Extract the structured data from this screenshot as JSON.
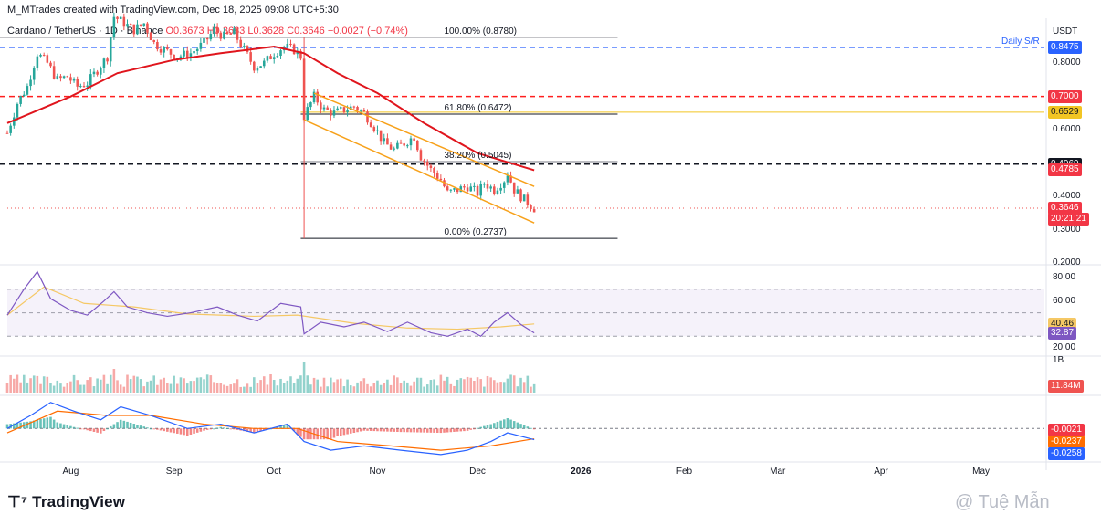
{
  "header": {
    "title": "M_MTrades created with TradingView.com, Dec 18, 2025 09:08 UTC+5:30"
  },
  "legend": {
    "symbol": "Cardano / TetherUS · 1D · Binance",
    "ohlc": "O0.3673 H0.3683 L0.3628 C0.3646",
    "change": "−0.0027 (−0.74%)"
  },
  "axis_title": "USDT",
  "colors": {
    "up": "#26a69a",
    "down": "#ef5350",
    "ma": "#e0151d",
    "channel": "#f7a11a",
    "rsi": "#7e57c2",
    "rsi_ma": "#f5c865",
    "macd_line": "#2962ff",
    "signal_line": "#ff6d00",
    "resistance": "#ff1f1f",
    "fib_yellow": "#f2c523",
    "daily_sr": "#2962ff"
  },
  "footer": {
    "logo_text": "TradingView",
    "watermark": "@ Tuệ Mẫn"
  },
  "chart_data": [
    {
      "type": "candlestick",
      "ylim": [
        0.2,
        0.9
      ],
      "y_ticks": [
        "0.8000",
        "0.6000",
        "0.4000",
        "0.3000",
        "0.2000"
      ],
      "x_ticks": [
        "Aug",
        "Sep",
        "Oct",
        "Nov",
        "Dec",
        "2026",
        "Feb",
        "Mar",
        "Apr",
        "May"
      ],
      "close_path": [
        [
          "2025-07-13",
          0.59
        ],
        [
          "2025-07-16",
          0.68
        ],
        [
          "2025-07-19",
          0.73
        ],
        [
          "2025-07-22",
          0.83
        ],
        [
          "2025-07-25",
          0.8
        ],
        [
          "2025-07-28",
          0.75
        ],
        [
          "2025-07-31",
          0.76
        ],
        [
          "2025-08-03",
          0.73
        ],
        [
          "2025-08-06",
          0.74
        ],
        [
          "2025-08-09",
          0.78
        ],
        [
          "2025-08-12",
          0.82
        ],
        [
          "2025-08-14",
          0.94
        ],
        [
          "2025-08-17",
          0.92
        ],
        [
          "2025-08-20",
          0.9
        ],
        [
          "2025-08-23",
          0.92
        ],
        [
          "2025-08-26",
          0.86
        ],
        [
          "2025-08-29",
          0.84
        ],
        [
          "2025-09-02",
          0.82
        ],
        [
          "2025-09-06",
          0.83
        ],
        [
          "2025-09-10",
          0.86
        ],
        [
          "2025-09-13",
          0.9
        ],
        [
          "2025-09-16",
          0.88
        ],
        [
          "2025-09-19",
          0.89
        ],
        [
          "2025-09-22",
          0.84
        ],
        [
          "2025-09-25",
          0.79
        ],
        [
          "2025-09-28",
          0.8
        ],
        [
          "2025-10-01",
          0.83
        ],
        [
          "2025-10-04",
          0.85
        ],
        [
          "2025-10-07",
          0.84
        ],
        [
          "2025-10-09",
          0.82
        ],
        [
          "2025-10-10",
          0.64
        ],
        [
          "2025-10-13",
          0.7
        ],
        [
          "2025-10-16",
          0.66
        ],
        [
          "2025-10-19",
          0.65
        ],
        [
          "2025-10-22",
          0.66
        ],
        [
          "2025-10-25",
          0.67
        ],
        [
          "2025-10-28",
          0.65
        ],
        [
          "2025-10-31",
          0.61
        ],
        [
          "2025-11-03",
          0.56
        ],
        [
          "2025-11-06",
          0.54
        ],
        [
          "2025-11-09",
          0.56
        ],
        [
          "2025-11-12",
          0.58
        ],
        [
          "2025-11-14",
          0.52
        ],
        [
          "2025-11-17",
          0.48
        ],
        [
          "2025-11-20",
          0.45
        ],
        [
          "2025-11-22",
          0.41
        ],
        [
          "2025-11-25",
          0.42
        ],
        [
          "2025-11-28",
          0.43
        ],
        [
          "2025-12-01",
          0.41
        ],
        [
          "2025-12-03",
          0.44
        ],
        [
          "2025-12-06",
          0.42
        ],
        [
          "2025-12-09",
          0.45
        ],
        [
          "2025-12-10",
          0.47
        ],
        [
          "2025-12-12",
          0.42
        ],
        [
          "2025-12-15",
          0.39
        ],
        [
          "2025-12-18",
          0.3646
        ]
      ],
      "moving_average": [
        [
          "2025-07-13",
          0.62
        ],
        [
          "2025-08-01",
          0.7
        ],
        [
          "2025-08-15",
          0.77
        ],
        [
          "2025-09-01",
          0.81
        ],
        [
          "2025-09-15",
          0.83
        ],
        [
          "2025-10-01",
          0.85
        ],
        [
          "2025-10-10",
          0.83
        ],
        [
          "2025-10-20",
          0.77
        ],
        [
          "2025-11-01",
          0.71
        ],
        [
          "2025-11-15",
          0.62
        ],
        [
          "2025-12-01",
          0.53
        ],
        [
          "2025-12-18",
          0.4785
        ]
      ],
      "levels": [
        {
          "label": "100.00% (0.8780)",
          "value": 0.878,
          "color": "#131722",
          "style": "solid"
        },
        {
          "label": "Daily S/R",
          "value": 0.8475,
          "color": "#2962ff",
          "style": "dashed"
        },
        {
          "label": "",
          "value": 0.7,
          "color": "#ff1f1f",
          "style": "dashed"
        },
        {
          "label": "61.80% (0.6472)",
          "value": 0.6472,
          "color": "#131722",
          "style": "solid"
        },
        {
          "label": "",
          "value": 0.6529,
          "color": "#f2c523",
          "style": "solid"
        },
        {
          "label": "38.20% (0.5045)",
          "value": 0.5045,
          "color": "#787b86",
          "style": "solid"
        },
        {
          "label": "",
          "value": 0.4969,
          "color": "#131722",
          "style": "dashed"
        },
        {
          "label": "0.00% (0.2737)",
          "value": 0.2737,
          "color": "#131722",
          "style": "solid"
        }
      ],
      "channel": {
        "upper": [
          [
            "2025-10-13",
            0.71
          ],
          [
            "2025-12-18",
            0.43
          ]
        ],
        "lower": [
          [
            "2025-10-10",
            0.63
          ],
          [
            "2025-12-18",
            0.32
          ]
        ]
      },
      "price_badges": [
        {
          "text": "0.8475",
          "value": 0.8475,
          "color": "#2962ff"
        },
        {
          "text": "0.7000",
          "value": 0.7,
          "color": "#f23645"
        },
        {
          "text": "0.6529",
          "value": 0.6529,
          "color": "#f2c523",
          "dark": true
        },
        {
          "text": "0.4969",
          "value": 0.4969,
          "color": "#131722"
        },
        {
          "text": "0.4785",
          "value": 0.4785,
          "color": "#f23645"
        },
        {
          "text": "0.3646",
          "value": 0.3646,
          "color": "#f23645"
        },
        {
          "text": "20:21:21",
          "value": 0.3646,
          "color": "#f23645",
          "below": true
        }
      ]
    },
    {
      "type": "line",
      "name": "RSI",
      "ylim": [
        20,
        85
      ],
      "y_ticks": [
        "80.00",
        "60.00",
        "20.00"
      ],
      "bands": [
        70,
        30
      ],
      "rsi": [
        [
          "2025-07-13",
          48
        ],
        [
          "2025-07-18",
          70
        ],
        [
          "2025-07-22",
          85
        ],
        [
          "2025-07-26",
          62
        ],
        [
          "2025-08-01",
          52
        ],
        [
          "2025-08-06",
          48
        ],
        [
          "2025-08-11",
          60
        ],
        [
          "2025-08-14",
          68
        ],
        [
          "2025-08-18",
          55
        ],
        [
          "2025-08-24",
          50
        ],
        [
          "2025-08-30",
          47
        ],
        [
          "2025-09-06",
          50
        ],
        [
          "2025-09-14",
          55
        ],
        [
          "2025-09-20",
          48
        ],
        [
          "2025-09-26",
          43
        ],
        [
          "2025-10-03",
          58
        ],
        [
          "2025-10-09",
          55
        ],
        [
          "2025-10-10",
          32
        ],
        [
          "2025-10-15",
          42
        ],
        [
          "2025-10-22",
          38
        ],
        [
          "2025-10-28",
          42
        ],
        [
          "2025-11-04",
          34
        ],
        [
          "2025-11-10",
          42
        ],
        [
          "2025-11-17",
          33
        ],
        [
          "2025-11-22",
          30
        ],
        [
          "2025-11-28",
          36
        ],
        [
          "2025-12-02",
          30
        ],
        [
          "2025-12-06",
          42
        ],
        [
          "2025-12-10",
          50
        ],
        [
          "2025-12-14",
          40
        ],
        [
          "2025-12-18",
          32.87
        ]
      ],
      "rsi_ma": [
        [
          "2025-07-13",
          48
        ],
        [
          "2025-07-24",
          72
        ],
        [
          "2025-08-05",
          58
        ],
        [
          "2025-08-20",
          55
        ],
        [
          "2025-09-05",
          49
        ],
        [
          "2025-09-25",
          47
        ],
        [
          "2025-10-08",
          48
        ],
        [
          "2025-10-25",
          41
        ],
        [
          "2025-11-10",
          37
        ],
        [
          "2025-11-25",
          36
        ],
        [
          "2025-12-08",
          38
        ],
        [
          "2025-12-18",
          40.46
        ]
      ],
      "badges": [
        {
          "text": "40.46",
          "value": 40.46,
          "color": "#f5c865",
          "dark": true
        },
        {
          "text": "32.87",
          "value": 32.87,
          "color": "#7e57c2"
        }
      ]
    },
    {
      "type": "bar",
      "name": "Volume",
      "y_ticks": [
        "1B"
      ],
      "volume_badge": "11.84M"
    },
    {
      "type": "bar",
      "name": "MACD",
      "ylim": [
        -0.09,
        0.07
      ],
      "macd": [
        [
          "2025-07-13",
          0.0
        ],
        [
          "2025-07-20",
          0.03
        ],
        [
          "2025-07-26",
          0.06
        ],
        [
          "2025-08-02",
          0.04
        ],
        [
          "2025-08-10",
          0.02
        ],
        [
          "2025-08-16",
          0.05
        ],
        [
          "2025-08-25",
          0.03
        ],
        [
          "2025-09-05",
          0.0
        ],
        [
          "2025-09-15",
          0.01
        ],
        [
          "2025-09-25",
          -0.01
        ],
        [
          "2025-10-05",
          0.01
        ],
        [
          "2025-10-10",
          -0.03
        ],
        [
          "2025-10-18",
          -0.05
        ],
        [
          "2025-10-28",
          -0.04
        ],
        [
          "2025-11-08",
          -0.05
        ],
        [
          "2025-11-20",
          -0.06
        ],
        [
          "2025-11-28",
          -0.05
        ],
        [
          "2025-12-05",
          -0.03
        ],
        [
          "2025-12-10",
          -0.01
        ],
        [
          "2025-12-18",
          -0.0258
        ]
      ],
      "signal": [
        [
          "2025-07-13",
          -0.01
        ],
        [
          "2025-07-28",
          0.04
        ],
        [
          "2025-08-12",
          0.03
        ],
        [
          "2025-08-25",
          0.03
        ],
        [
          "2025-09-10",
          0.01
        ],
        [
          "2025-09-25",
          0.0
        ],
        [
          "2025-10-08",
          0.0
        ],
        [
          "2025-10-20",
          -0.03
        ],
        [
          "2025-11-05",
          -0.04
        ],
        [
          "2025-11-20",
          -0.05
        ],
        [
          "2025-12-05",
          -0.04
        ],
        [
          "2025-12-18",
          -0.0237
        ]
      ],
      "badges": [
        {
          "text": "-0.0021",
          "value": -0.0021,
          "color": "#f23645"
        },
        {
          "text": "-0.0237",
          "value": -0.0237,
          "color": "#ff6d00"
        },
        {
          "text": "-0.0258",
          "value": -0.0258,
          "color": "#2962ff"
        }
      ]
    }
  ]
}
